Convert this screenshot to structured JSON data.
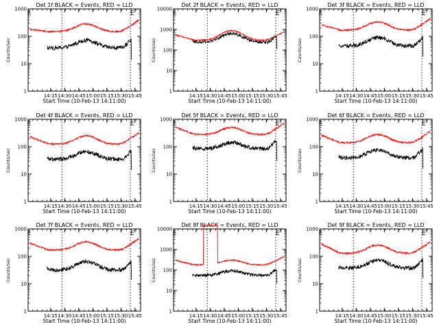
{
  "chart_data": [
    {
      "type": "line",
      "title": "Det 1f BLACK = Events, RED = LLD",
      "xlabel": "Start Time (10-Feb-13 14:11:00)",
      "ylabel": "Counts/sec",
      "yscale": "log",
      "ylim": [
        1,
        1000
      ],
      "yticks": [
        "1",
        "10",
        "100",
        "1000"
      ],
      "xticks": [
        "14:15",
        "14:30",
        "14:45",
        "15:00",
        "15:15",
        "15:30",
        "15:45"
      ],
      "xlim": [
        -20,
        100
      ],
      "flag_label": "E",
      "red_base": 150,
      "red_bump": 1.9,
      "red_start": 180,
      "black_base": 38,
      "black_bump": 1.9,
      "black_end_dip": 14,
      "black_start": 38,
      "spikes": false,
      "series": [
        {
          "name": "Events",
          "color": "#000000"
        },
        {
          "name": "LLD",
          "color": "#ff0000"
        }
      ]
    },
    {
      "type": "line",
      "title": "Det 2f BLACK = Events, RED = LLD",
      "xlabel": "Start Time (10-Feb-13 14:11:00)",
      "ylabel": "Counts/sec",
      "yscale": "log",
      "ylim": [
        1,
        10000
      ],
      "yticks": [
        "1",
        "10",
        "100",
        "1000",
        "10000"
      ],
      "xticks": [
        "14:15",
        "14:30",
        "14:45",
        "15:00",
        "15:15",
        "15:30",
        "15:45"
      ],
      "xlim": [
        -20,
        100
      ],
      "flag_label": "E",
      "red_base": 300,
      "red_bump": 2.9,
      "red_start": 550,
      "black_base": 240,
      "black_bump": 2.7,
      "black_end_dip": 110,
      "black_start": 300,
      "spikes": false,
      "series": [
        {
          "name": "Events",
          "color": "#000000"
        },
        {
          "name": "LLD",
          "color": "#ff0000"
        }
      ]
    },
    {
      "type": "line",
      "title": "Det 3f BLACK = Events, RED = LLD",
      "xlabel": "Start Time (10-Feb-13 14:11:00)",
      "ylabel": "Counts/sec",
      "yscale": "log",
      "ylim": [
        1,
        1000
      ],
      "yticks": [
        "1",
        "10",
        "100",
        "1000"
      ],
      "xticks": [
        "14:15",
        "14:30",
        "14:45",
        "15:00",
        "15:15",
        "15:30",
        "15:45"
      ],
      "xlim": [
        -20,
        100
      ],
      "flag_label": "E",
      "red_base": 170,
      "red_bump": 2.0,
      "red_start": 260,
      "black_base": 45,
      "black_bump": 2.0,
      "black_end_dip": 18,
      "black_start": 45,
      "spikes": false,
      "series": [
        {
          "name": "Events",
          "color": "#000000"
        },
        {
          "name": "LLD",
          "color": "#ff0000"
        }
      ]
    },
    {
      "type": "line",
      "title": "Det 4f BLACK = Events, RED = LLD",
      "xlabel": "Start Time (10-Feb-13 14:11:00)",
      "ylabel": "Counts/sec",
      "yscale": "log",
      "ylim": [
        1,
        1000
      ],
      "yticks": [
        "1",
        "10",
        "100",
        "1000"
      ],
      "xticks": [
        "14:15",
        "14:30",
        "14:45",
        "15:00",
        "15:15",
        "15:30",
        "15:45"
      ],
      "xlim": [
        -20,
        100
      ],
      "flag_label": "E",
      "red_base": 125,
      "red_bump": 2.0,
      "red_start": 230,
      "black_base": 35,
      "black_bump": 1.9,
      "black_end_dip": 14,
      "black_start": 40,
      "spikes": false,
      "series": [
        {
          "name": "Events",
          "color": "#000000"
        },
        {
          "name": "LLD",
          "color": "#ff0000"
        }
      ]
    },
    {
      "type": "line",
      "title": "Det 5f BLACK = Events, RED = LLD",
      "xlabel": "Start Time (10-Feb-13 14:11:00)",
      "ylabel": "Counts/sec",
      "yscale": "log",
      "ylim": [
        1,
        1000
      ],
      "yticks": [
        "1",
        "10",
        "100",
        "1000"
      ],
      "xticks": [
        "14:15",
        "14:30",
        "14:45",
        "15:00",
        "15:15",
        "15:30",
        "15:45"
      ],
      "xlim": [
        -20,
        100
      ],
      "flag_label": "E",
      "red_base": 280,
      "red_bump": 1.8,
      "red_start": 520,
      "black_base": 85,
      "black_bump": 1.7,
      "black_end_dip": 30,
      "black_start": 95,
      "spikes": false,
      "series": [
        {
          "name": "Events",
          "color": "#000000"
        },
        {
          "name": "LLD",
          "color": "#ff0000"
        }
      ]
    },
    {
      "type": "line",
      "title": "Det 6f BLACK = Events, RED = LLD",
      "xlabel": "Start Time (10-Feb-13 14:11:00)",
      "ylabel": "Counts/sec",
      "yscale": "log",
      "ylim": [
        1,
        1000
      ],
      "yticks": [
        "1",
        "10",
        "100",
        "1000"
      ],
      "xticks": [
        "14:15",
        "14:30",
        "14:45",
        "15:00",
        "15:15",
        "15:30",
        "15:45"
      ],
      "xlim": [
        -20,
        100
      ],
      "flag_label": "E",
      "red_base": 140,
      "red_bump": 2.0,
      "red_start": 260,
      "black_base": 40,
      "black_bump": 1.9,
      "black_end_dip": 16,
      "black_start": 45,
      "spikes": false,
      "series": [
        {
          "name": "Events",
          "color": "#000000"
        },
        {
          "name": "LLD",
          "color": "#ff0000"
        }
      ]
    },
    {
      "type": "line",
      "title": "Det 7f BLACK = Events, RED = LLD",
      "xlabel": "Start Time (10-Feb-13 14:11:00)",
      "ylabel": "Counts/sec",
      "yscale": "log",
      "ylim": [
        1,
        1000
      ],
      "yticks": [
        "1",
        "10",
        "100",
        "1000"
      ],
      "xticks": [
        "14:15",
        "14:30",
        "14:45",
        "15:00",
        "15:15",
        "15:30",
        "15:45"
      ],
      "xlim": [
        -20,
        100
      ],
      "flag_label": "E",
      "red_base": 170,
      "red_bump": 2.0,
      "red_start": 300,
      "black_base": 32,
      "black_bump": 2.0,
      "black_end_dip": 14,
      "black_start": 38,
      "spikes": false,
      "series": [
        {
          "name": "Events",
          "color": "#000000"
        },
        {
          "name": "LLD",
          "color": "#ff0000"
        }
      ]
    },
    {
      "type": "line",
      "title": "Det 8f BLACK = Events, RED = LLD",
      "xlabel": "Start Time (10-Feb-13 14:11:00)",
      "ylabel": "Counts/sec",
      "yscale": "log",
      "ylim": [
        1,
        10000
      ],
      "yticks": [
        "1",
        "10",
        "100",
        "1000",
        "10000"
      ],
      "xticks": [
        "14:15",
        "14:30",
        "14:45",
        "15:00",
        "15:15",
        "15:30",
        "15:45"
      ],
      "xlim": [
        -20,
        100
      ],
      "flag_label": "E",
      "red_base": 180,
      "red_bump": 1.7,
      "red_start": 300,
      "black_base": 55,
      "black_bump": 1.7,
      "black_end_dip": 22,
      "black_start": 60,
      "spikes": true,
      "series": [
        {
          "name": "Events",
          "color": "#000000"
        },
        {
          "name": "LLD",
          "color": "#ff0000"
        }
      ]
    },
    {
      "type": "line",
      "title": "Det 9f BLACK = Events, RED = LLD",
      "xlabel": "Start Time (10-Feb-13 14:11:00)",
      "ylabel": "Counts/sec",
      "yscale": "log",
      "ylim": [
        1,
        1000
      ],
      "yticks": [
        "1",
        "10",
        "100",
        "1000"
      ],
      "xticks": [
        "14:15",
        "14:30",
        "14:45",
        "15:00",
        "15:15",
        "15:30",
        "15:45"
      ],
      "xlim": [
        -20,
        100
      ],
      "flag_label": "E",
      "red_base": 130,
      "red_bump": 2.0,
      "red_start": 280,
      "black_base": 38,
      "black_bump": 1.9,
      "black_end_dip": 16,
      "black_start": 42,
      "spikes": false,
      "series": [
        {
          "name": "Events",
          "color": "#000000"
        },
        {
          "name": "LLD",
          "color": "#ff0000"
        }
      ]
    }
  ]
}
